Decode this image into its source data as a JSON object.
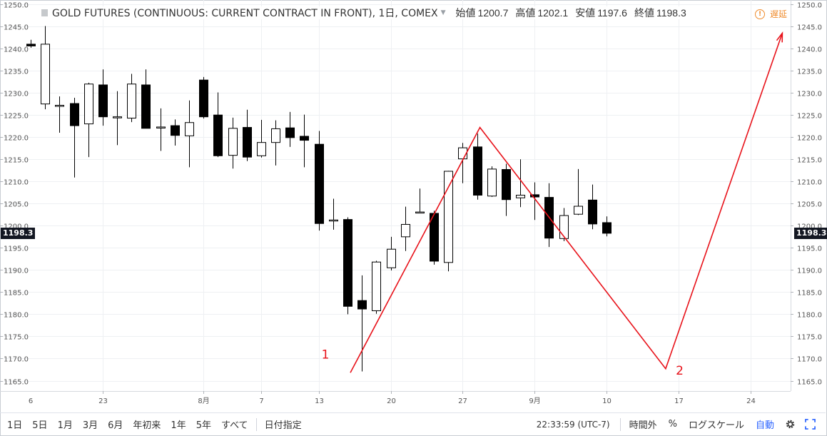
{
  "legend": {
    "title": "GOLD FUTURES (CONTINUOUS: CURRENT CONTRACT IN FRONT), 1日, COMEX",
    "open_label": "始値",
    "open": "1200.7",
    "high_label": "高値",
    "high": "1202.1",
    "low_label": "安値",
    "low": "1197.6",
    "close_label": "終値",
    "close": "1198.3"
  },
  "delay_label": "遅延",
  "last_price_tag": "1198.3",
  "toolbar": {
    "ranges": [
      "1日",
      "5日",
      "1月",
      "3月",
      "6月",
      "年初来",
      "1年",
      "5年",
      "すべて"
    ],
    "date_range": "日付指定",
    "time": "22:33:59 (UTC-7)",
    "extended_hours": "時間外",
    "percent": "%",
    "log_scale": "ログスケール",
    "auto": "自動"
  },
  "chart_data": {
    "type": "candlestick",
    "instrument": "GOLD FUTURES (CONTINUOUS: CURRENT CONTRACT IN FRONT)",
    "interval": "1日",
    "exchange": "COMEX",
    "ylim": [
      1163,
      1250
    ],
    "y_ticks": [
      "1165.0",
      "1170.0",
      "1175.0",
      "1180.0",
      "1185.0",
      "1190.0",
      "1195.0",
      "1200.0",
      "1205.0",
      "1210.0",
      "1215.0",
      "1220.0",
      "1225.0",
      "1230.0",
      "1235.0",
      "1240.0",
      "1245.0",
      "1250.0"
    ],
    "x_ticks": [
      {
        "label": "23",
        "i": 5
      },
      {
        "label": "8月",
        "i": 12
      },
      {
        "label": "7",
        "i": 16
      },
      {
        "label": "13",
        "i": 20
      },
      {
        "label": "20",
        "i": 25
      },
      {
        "label": "27",
        "i": 30
      },
      {
        "label": "9月",
        "i": 35
      },
      {
        "label": "10",
        "i": 40
      },
      {
        "label": "17",
        "i": 45
      },
      {
        "label": "24",
        "i": 50
      }
    ],
    "x_tick_partial": "6",
    "candles": [
      {
        "o": 1241.0,
        "h": 1242.0,
        "l": 1240.2,
        "c": 1240.6
      },
      {
        "o": 1227.5,
        "h": 1245.1,
        "l": 1226.3,
        "c": 1241.0
      },
      {
        "o": 1227.2,
        "h": 1229.2,
        "l": 1221.0,
        "c": 1227.2
      },
      {
        "o": 1227.6,
        "h": 1228.9,
        "l": 1210.9,
        "c": 1222.6
      },
      {
        "o": 1223.0,
        "h": 1232.3,
        "l": 1215.5,
        "c": 1232.0
      },
      {
        "o": 1231.8,
        "h": 1235.3,
        "l": 1222.6,
        "c": 1224.6
      },
      {
        "o": 1224.6,
        "h": 1230.4,
        "l": 1218.2,
        "c": 1224.6
      },
      {
        "o": 1224.3,
        "h": 1234.3,
        "l": 1223.4,
        "c": 1232.0
      },
      {
        "o": 1231.8,
        "h": 1235.3,
        "l": 1222.0,
        "c": 1222.0
      },
      {
        "o": 1222.3,
        "h": 1226.5,
        "l": 1216.9,
        "c": 1222.3
      },
      {
        "o": 1222.6,
        "h": 1224.0,
        "l": 1218.1,
        "c": 1220.4
      },
      {
        "o": 1220.3,
        "h": 1228.3,
        "l": 1213.2,
        "c": 1223.3
      },
      {
        "o": 1232.9,
        "h": 1233.6,
        "l": 1224.2,
        "c": 1224.6
      },
      {
        "o": 1225.0,
        "h": 1230.1,
        "l": 1215.5,
        "c": 1215.8
      },
      {
        "o": 1215.9,
        "h": 1224.4,
        "l": 1212.9,
        "c": 1222.0
      },
      {
        "o": 1222.2,
        "h": 1226.2,
        "l": 1214.6,
        "c": 1215.5
      },
      {
        "o": 1215.8,
        "h": 1223.9,
        "l": 1215.4,
        "c": 1218.8
      },
      {
        "o": 1218.8,
        "h": 1223.8,
        "l": 1213.6,
        "c": 1221.9
      },
      {
        "o": 1222.1,
        "h": 1225.7,
        "l": 1217.8,
        "c": 1219.9
      },
      {
        "o": 1220.2,
        "h": 1225.1,
        "l": 1213.2,
        "c": 1219.3
      },
      {
        "o": 1218.4,
        "h": 1221.4,
        "l": 1198.9,
        "c": 1200.5
      },
      {
        "o": 1201.3,
        "h": 1206.1,
        "l": 1199.1,
        "c": 1201.3
      },
      {
        "o": 1201.4,
        "h": 1201.9,
        "l": 1180.0,
        "c": 1181.8
      },
      {
        "o": 1183.1,
        "h": 1188.8,
        "l": 1167.1,
        "c": 1181.2
      },
      {
        "o": 1180.8,
        "h": 1192.1,
        "l": 1180.1,
        "c": 1191.8
      },
      {
        "o": 1190.5,
        "h": 1197.5,
        "l": 1189.9,
        "c": 1194.7
      },
      {
        "o": 1197.5,
        "h": 1204.3,
        "l": 1194.3,
        "c": 1200.3
      },
      {
        "o": 1203.1,
        "h": 1208.4,
        "l": 1202.8,
        "c": 1203.1
      },
      {
        "o": 1202.8,
        "h": 1203.4,
        "l": 1191.2,
        "c": 1192.0
      },
      {
        "o": 1191.7,
        "h": 1212.4,
        "l": 1189.7,
        "c": 1212.3
      },
      {
        "o": 1215.1,
        "h": 1218.7,
        "l": 1209.6,
        "c": 1217.6
      },
      {
        "o": 1217.8,
        "h": 1220.8,
        "l": 1205.9,
        "c": 1206.9
      },
      {
        "o": 1206.7,
        "h": 1213.4,
        "l": 1206.5,
        "c": 1212.8
      },
      {
        "o": 1212.7,
        "h": 1214.0,
        "l": 1202.2,
        "c": 1205.9
      },
      {
        "o": 1206.3,
        "h": 1215.0,
        "l": 1204.2,
        "c": 1206.9
      },
      {
        "o": 1207.0,
        "h": 1209.8,
        "l": 1201.3,
        "c": 1206.5
      },
      {
        "o": 1206.4,
        "h": 1209.6,
        "l": 1195.2,
        "c": 1197.2
      },
      {
        "o": 1197.1,
        "h": 1204.0,
        "l": 1196.5,
        "c": 1202.3
      },
      {
        "o": 1202.6,
        "h": 1212.8,
        "l": 1202.4,
        "c": 1204.4
      },
      {
        "o": 1205.8,
        "h": 1209.3,
        "l": 1199.2,
        "c": 1200.4
      },
      {
        "o": 1200.7,
        "h": 1202.1,
        "l": 1197.6,
        "c": 1198.3
      }
    ],
    "annotation_line": {
      "color": "#e8121a",
      "points": [
        {
          "i": 22.2,
          "price": 1166.8
        },
        {
          "i": 31.2,
          "price": 1222.2
        },
        {
          "i": 44.1,
          "price": 1167.7
        },
        {
          "i": 52.2,
          "price": 1243.5
        }
      ]
    },
    "annotation_labels": [
      {
        "text": "1",
        "i": 20.2,
        "price": 1170.0
      },
      {
        "text": "2",
        "i": 44.8,
        "price": 1166.4
      }
    ],
    "grid": true,
    "up_color": "#ffffff",
    "down_color": "#000000",
    "last_price": 1198.3
  }
}
